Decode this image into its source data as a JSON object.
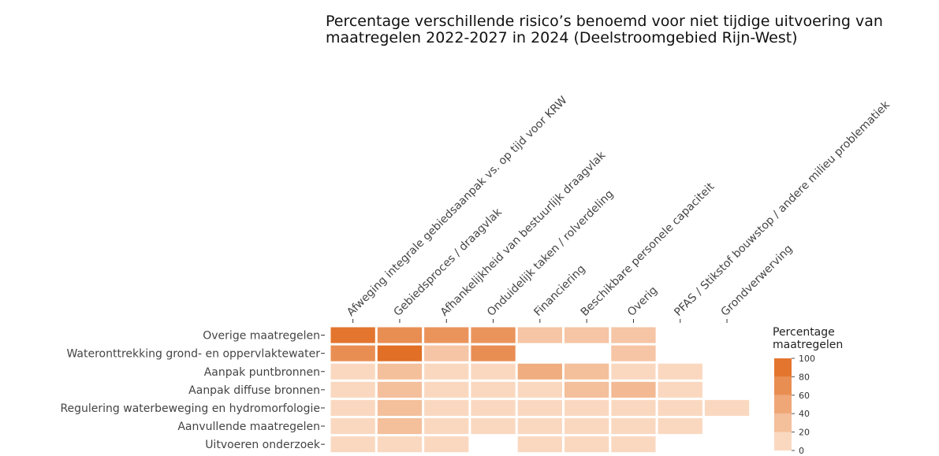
{
  "chart_data": {
    "type": "heatmap",
    "title": "Percentage verschillende risico’s benoemd voor niet tijdige uitvoering van maatregelen 2022-2027 in 2024 (Deelstroomgebied Rijn-West)",
    "x_categories": [
      "Afweging integrale gebiedsaanpak vs. op tijd voor KRW",
      "Gebiedsproces / draagvlak",
      "Afhankelijkheid van bestuurlijk draagvlak",
      "Onduidelijk taken / rolverdeling",
      "Financiering",
      "Beschikbare personele capaciteit",
      "Overig",
      "PFAS / Stikstof bouwstop / andere milieu problematiek",
      "Grondverwerving"
    ],
    "y_categories": [
      "Overige maatregelen",
      "Wateronttrekking grond- en oppervlaktewater",
      "Aanpak puntbronnen",
      "Aanpak diffuse bronnen",
      "Regulering waterbeweging en hydromorfologie",
      "Aanvullende maatregelen",
      "Uitvoeren onderzoek"
    ],
    "values": [
      [
        90,
        70,
        65,
        65,
        25,
        25,
        25,
        null,
        null
      ],
      [
        70,
        95,
        25,
        70,
        null,
        null,
        25,
        null,
        null
      ],
      [
        10,
        30,
        10,
        10,
        45,
        30,
        10,
        10,
        null
      ],
      [
        10,
        30,
        10,
        10,
        10,
        30,
        35,
        10,
        null
      ],
      [
        10,
        30,
        10,
        10,
        10,
        10,
        10,
        10,
        10
      ],
      [
        10,
        30,
        10,
        10,
        10,
        10,
        10,
        10,
        null
      ],
      [
        10,
        10,
        10,
        null,
        10,
        10,
        10,
        null,
        null
      ]
    ],
    "colorscale": [
      "#fde4d2",
      "#e0691c"
    ],
    "legend_title": "Percentage maatregelen",
    "clim": [
      0,
      100
    ],
    "cticks": [
      0,
      20,
      40,
      60,
      80,
      100
    ]
  }
}
